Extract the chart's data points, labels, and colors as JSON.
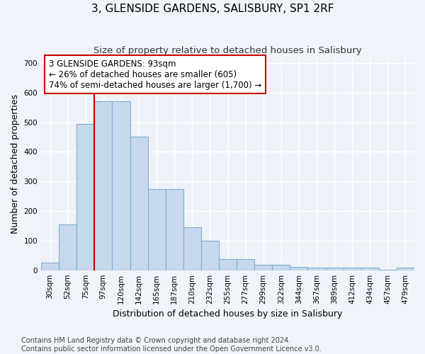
{
  "title": "3, GLENSIDE GARDENS, SALISBURY, SP1 2RF",
  "subtitle": "Size of property relative to detached houses in Salisbury",
  "xlabel": "Distribution of detached houses by size in Salisbury",
  "ylabel": "Number of detached properties",
  "bar_labels": [
    "30sqm",
    "52sqm",
    "75sqm",
    "97sqm",
    "120sqm",
    "142sqm",
    "165sqm",
    "187sqm",
    "210sqm",
    "232sqm",
    "255sqm",
    "277sqm",
    "299sqm",
    "322sqm",
    "344sqm",
    "367sqm",
    "389sqm",
    "412sqm",
    "434sqm",
    "457sqm",
    "479sqm"
  ],
  "bar_values": [
    25,
    155,
    495,
    570,
    570,
    450,
    275,
    275,
    145,
    100,
    38,
    38,
    18,
    18,
    12,
    8,
    8,
    8,
    8,
    2,
    8
  ],
  "bar_color": "#c8d8ec",
  "bar_edge_color": "#7bafd4",
  "annotation_text": "3 GLENSIDE GARDENS: 93sqm\n← 26% of detached houses are smaller (605)\n74% of semi-detached houses are larger (1,700) →",
  "vline_x": 3.0,
  "vline_color": "#cc0000",
  "annotation_box_facecolor": "#ffffff",
  "annotation_box_edge": "#cc0000",
  "ylim": [
    0,
    720
  ],
  "yticks": [
    0,
    100,
    200,
    300,
    400,
    500,
    600,
    700
  ],
  "footer_line1": "Contains HM Land Registry data © Crown copyright and database right 2024.",
  "footer_line2": "Contains public sector information licensed under the Open Government Licence v3.0.",
  "background_color": "#f0f4fa",
  "plot_background": "#eef2f8",
  "grid_color": "#ffffff",
  "title_fontsize": 11,
  "subtitle_fontsize": 9.5,
  "axis_label_fontsize": 9,
  "tick_fontsize": 7.5,
  "annotation_fontsize": 8.5,
  "footer_fontsize": 7
}
